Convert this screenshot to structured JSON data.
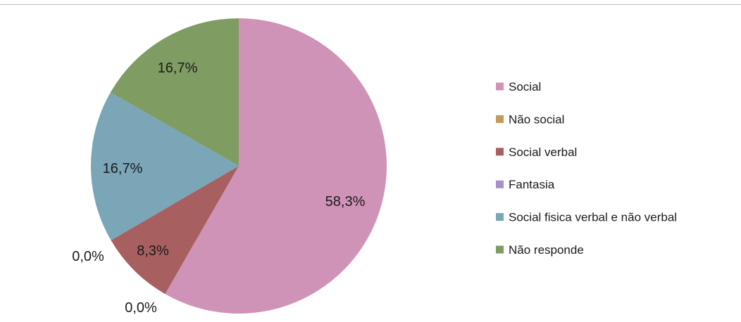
{
  "chart_data": {
    "type": "pie",
    "title": "",
    "legend_position": "right",
    "slices": [
      {
        "name": "Social",
        "value": 58.3,
        "label": "58,3%",
        "color": "#d093b8"
      },
      {
        "name": "Não social",
        "value": 0.0,
        "label": "0,0%",
        "color": "#c29b5b"
      },
      {
        "name": "Social verbal",
        "value": 8.3,
        "label": "8,3%",
        "color": "#a85f5f"
      },
      {
        "name": "Fantasia",
        "value": 0.0,
        "label": "0,0%",
        "color": "#a890c8"
      },
      {
        "name": "Social fisica verbal e não verbal",
        "value": 16.7,
        "label": "16,7%",
        "color": "#7aa6b7"
      },
      {
        "name": "Não responde",
        "value": 16.7,
        "label": "16,7%",
        "color": "#7f9c63"
      }
    ]
  }
}
